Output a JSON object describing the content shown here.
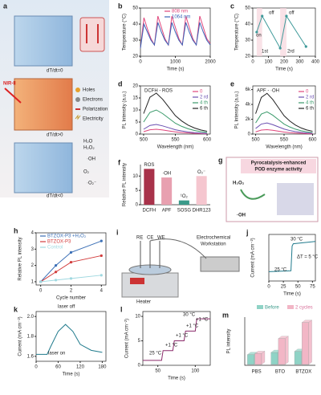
{
  "chart_data": [
    {
      "type": "line",
      "panel": "b",
      "xlabel": "Time (s)",
      "ylabel": "Temperature (°C)",
      "x": [
        0,
        100,
        200,
        300,
        400,
        500,
        600,
        700,
        800,
        900,
        1000,
        1100,
        1200,
        1300,
        1400,
        1500,
        1600,
        1700,
        1800,
        1900,
        2000
      ],
      "series": [
        {
          "name": "808 nm",
          "color": "#e0457b",
          "values": [
            25,
            44,
            37,
            31,
            27,
            45,
            38,
            31,
            27,
            45,
            38,
            31,
            27,
            45,
            38,
            31,
            27,
            45,
            38,
            31,
            28
          ]
        },
        {
          "name": "1064 nm",
          "color": "#3a63b8",
          "values": [
            25,
            40,
            35,
            30,
            27,
            41,
            35,
            30,
            27,
            41,
            35,
            30,
            27,
            41,
            35,
            30,
            27,
            41,
            35,
            30,
            27
          ]
        }
      ],
      "xlim": [
        0,
        2000
      ],
      "xticks": [
        0,
        1000,
        2000
      ],
      "ylim": [
        20,
        50
      ],
      "yticks": [
        20,
        30,
        40,
        50
      ]
    },
    {
      "type": "line",
      "panel": "c",
      "xlabel": "Time (s)",
      "ylabel": "Temperature (°C)",
      "markers": true,
      "x": [
        25,
        60,
        175,
        215,
        340
      ],
      "series": [
        {
          "color": "#3f9a9a",
          "values": [
            35,
            45,
            25,
            45,
            26
          ]
        }
      ],
      "annotations": [
        "on",
        "off",
        "1st",
        "off",
        "2rd"
      ],
      "xlim": [
        0,
        400
      ],
      "xticks": [
        0,
        100,
        200,
        300,
        400
      ],
      "ylim": [
        20,
        50
      ],
      "yticks": [
        20,
        30,
        40,
        50
      ]
    },
    {
      "type": "line",
      "panel": "d",
      "xlabel": "Wavelength (nm)",
      "ylabel": "PL Intensity (a.u.)",
      "annotations": [
        "DCFH - ROS"
      ],
      "x": [
        500,
        510,
        520,
        530,
        540,
        550,
        560,
        570,
        580,
        590,
        600
      ],
      "series": [
        {
          "name": "0",
          "color": "#e0457b",
          "values": [
            1,
            1.8,
            2,
            1.7,
            1.3,
            0.9,
            0.64,
            0.44,
            0.3,
            0.2,
            0.14
          ]
        },
        {
          "name": "2 rd",
          "color": "#6a4fb0",
          "values": [
            2,
            3.6,
            4,
            3.4,
            2.6,
            1.8,
            1.28,
            0.88,
            0.6,
            0.4,
            0.28
          ]
        },
        {
          "name": "4 th",
          "color": "#3a9a6a",
          "values": [
            5,
            9,
            10,
            8.5,
            6.5,
            4.5,
            3.2,
            2.2,
            1.5,
            1,
            0.7
          ]
        },
        {
          "name": "6 th",
          "color": "#222222",
          "values": [
            8.5,
            15.3,
            17,
            14.45,
            11.05,
            7.65,
            5.44,
            3.74,
            2.55,
            1.7,
            1.19
          ]
        }
      ],
      "xlim": [
        495,
        605
      ],
      "xticks": [
        500,
        550,
        600
      ],
      "ylim": [
        0,
        20
      ],
      "yticks": [
        0,
        5,
        10,
        15,
        20
      ]
    },
    {
      "type": "line",
      "panel": "e",
      "xlabel": "Wavelength (nm)",
      "ylabel": "PL Intensity (a.u.)",
      "annotations": [
        "APF - ·OH"
      ],
      "x": [
        500,
        510,
        520,
        530,
        540,
        550,
        560,
        570,
        580,
        590,
        600
      ],
      "series": [
        {
          "name": "0",
          "color": "#e0457b",
          "values": [
            300,
            540,
            600,
            510,
            390,
            270,
            192,
            132,
            90,
            60,
            42
          ]
        },
        {
          "name": "2 rd",
          "color": "#6a4fb0",
          "values": [
            750,
            1350,
            1500,
            1275,
            975,
            675,
            480,
            330,
            225,
            150,
            105
          ]
        },
        {
          "name": "4 th",
          "color": "#3a9a6a",
          "values": [
            1500,
            2700,
            3000,
            2550,
            1950,
            1350,
            960,
            660,
            450,
            300,
            210
          ]
        },
        {
          "name": "6 th",
          "color": "#222222",
          "values": [
            2750,
            4950,
            5500,
            4675,
            3575,
            2475,
            1760,
            1210,
            825,
            550,
            385
          ]
        }
      ],
      "xlim": [
        495,
        605
      ],
      "xticks": [
        500,
        550,
        600
      ],
      "ylim": [
        0,
        6500
      ],
      "yticks": [
        0,
        {
          "value": 2000,
          "label": "2k"
        },
        {
          "value": 4000,
          "label": "4k"
        },
        {
          "value": 6000,
          "label": "6k"
        }
      ]
    },
    {
      "type": "bar",
      "panel": "f",
      "ylabel": "Relative PL intensity",
      "categories": [
        "DCFH",
        "APF",
        "SOSG",
        "DHR123"
      ],
      "values": [
        12.5,
        9.5,
        1.5,
        10
      ],
      "colors": [
        "#a8324a",
        "#e8a0b0",
        "#3a9a8a",
        "#f5c6cf"
      ],
      "annotations": [
        "ROS",
        "·OH",
        "¹O₂",
        "O₂⁻"
      ],
      "ylim": [
        0,
        14
      ],
      "yticks": [
        0,
        5,
        10
      ]
    },
    {
      "type": "line",
      "panel": "h",
      "xlabel": "Cycle number",
      "ylabel": "Relative PL intensity",
      "markers": true,
      "x": [
        0,
        1,
        2,
        4
      ],
      "series": [
        {
          "name": "BTZOX-P3 +H₂O₂",
          "color": "#3b6fb6",
          "values": [
            1,
            2,
            2.8,
            3.5
          ]
        },
        {
          "name": "BTZOX-P3",
          "color": "#d23c3c",
          "values": [
            1,
            1.6,
            2.2,
            2.6
          ]
        },
        {
          "name": "Control",
          "color": "#9fd8e0",
          "values": [
            1,
            1.1,
            1.2,
            1.4
          ]
        }
      ],
      "xlim": [
        -0.3,
        4.3
      ],
      "xticks": [
        0,
        2,
        4
      ],
      "ylim": [
        0.8,
        4
      ],
      "yticks": [
        1,
        2,
        3,
        4
      ]
    },
    {
      "type": "line",
      "panel": "j",
      "xlabel": "Time (s)",
      "ylabel": "Current (mA cm⁻²)",
      "annotations": [
        "30 °C",
        "25 °C",
        "ΔT = 5 °C"
      ],
      "x": [
        0,
        38,
        40,
        42,
        80
      ],
      "series": [
        {
          "color": "#1f7a8c",
          "values": [
            2,
            2.2,
            7.5,
            8,
            8.5
          ]
        }
      ],
      "xlim": [
        0,
        80
      ],
      "xticks": [
        0,
        25,
        50,
        75
      ],
      "ylim": [
        0,
        10
      ]
    },
    {
      "type": "line",
      "panel": "k",
      "xlabel": "Time (s)",
      "ylabel": "Current (mA cm⁻²)",
      "annotations": [
        "laser off",
        "laser on"
      ],
      "x": [
        0,
        30,
        40,
        60,
        80,
        100,
        120,
        150,
        180
      ],
      "series": [
        {
          "color": "#1f7a8c",
          "values": [
            1.62,
            1.62,
            1.7,
            1.85,
            1.92,
            1.85,
            1.72,
            1.66,
            1.64
          ]
        }
      ],
      "xlim": [
        0,
        190
      ],
      "xticks": [
        0,
        60,
        120,
        180
      ],
      "ylim": [
        1.55,
        2.05
      ],
      "yticks": [
        1.6,
        1.8,
        {
          "value": 2,
          "label": "2.0"
        }
      ]
    },
    {
      "type": "line",
      "panel": "l",
      "xlabel": "Time (s)",
      "ylabel": "Current (mA cm⁻²)",
      "annotations": [
        "30 °C",
        "25 °C",
        "+1 °C",
        "+1 °C",
        "+1 °C",
        "+1 °C"
      ],
      "x": [
        30,
        55,
        57,
        70,
        72,
        85,
        87,
        100,
        102,
        120
      ],
      "series": [
        {
          "color": "#8a2a6a",
          "values": [
            1,
            1,
            3,
            3,
            5,
            5,
            7,
            7,
            9.5,
            9.5
          ]
        }
      ],
      "xlim": [
        30,
        120
      ],
      "xticks": [
        50,
        100
      ],
      "ylim": [
        0,
        11
      ],
      "yticks": [
        0,
        5,
        10
      ]
    },
    {
      "type": "bar3d",
      "panel": "m",
      "ylabel": "PL intensity",
      "categories": [
        "PBS",
        "BTO",
        "BTZOX"
      ],
      "series": [
        {
          "name": "Before",
          "color": "#8fd3c6",
          "values": [
            1,
            1.2,
            1.3
          ]
        },
        {
          "name": "2 cycles",
          "color": "#f2b6c6",
          "values": [
            1.1,
            2.5,
            4
          ]
        }
      ],
      "ylim": [
        0,
        4.5
      ]
    }
  ],
  "diagrams": {
    "a": {
      "panel": "a",
      "states": [
        "dT/dt=0",
        "dT/dt>0",
        "dT/dt<0"
      ],
      "light": "NIR-II",
      "legend": [
        "Holes",
        "Electrons",
        "Polarization",
        "Electricity"
      ],
      "species": [
        "H₂O",
        "H₂O₂",
        "·OH",
        "O₂",
        "·O₂⁻"
      ]
    },
    "g": {
      "panel": "g",
      "title_lines": [
        "Pyrocatalysis-enhanced",
        "POD enzyme activity"
      ],
      "labels": [
        "H₂O₂",
        "·OH"
      ]
    },
    "i": {
      "panel": "i",
      "labels": [
        "Electrochemical",
        "Workstation",
        "Heater",
        "RE",
        "CE",
        "WE"
      ]
    }
  }
}
